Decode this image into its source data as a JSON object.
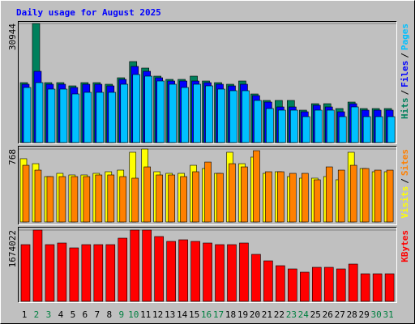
{
  "chart_data": {
    "type": "bar",
    "title": "Daily usage for August 2025",
    "categories": [
      "1",
      "2",
      "3",
      "4",
      "5",
      "6",
      "7",
      "8",
      "9",
      "10",
      "11",
      "12",
      "13",
      "14",
      "15",
      "16",
      "17",
      "18",
      "19",
      "20",
      "21",
      "22",
      "23",
      "24",
      "25",
      "26",
      "27",
      "28",
      "29",
      "30",
      "31"
    ],
    "category_colors": [
      "#000000",
      "#008040",
      "#008040",
      "#000000",
      "#000000",
      "#000000",
      "#000000",
      "#000000",
      "#008040",
      "#008040",
      "#000000",
      "#000000",
      "#000000",
      "#000000",
      "#000000",
      "#008040",
      "#008040",
      "#000000",
      "#000000",
      "#000000",
      "#000000",
      "#000000",
      "#008040",
      "#008040",
      "#000000",
      "#000000",
      "#000000",
      "#000000",
      "#000000",
      "#008040",
      "#008040"
    ],
    "legend_separator": "/",
    "panels": [
      {
        "ylim": [
          0,
          30944
        ],
        "yticks": [
          30944
        ],
        "series": [
          {
            "name": "Hits",
            "color": "#00805c",
            "values": [
              15577,
              30944,
              15577,
              15577,
              14735,
              15577,
              15577,
              15156,
              16840,
              21050,
              19366,
              17261,
              16419,
              16419,
              17261,
              15998,
              15577,
              15156,
              15998,
              12630,
              10946,
              10946,
              10946,
              8420,
              10104,
              10104,
              8841,
              10525,
              8841,
              8841,
              8841
            ]
          },
          {
            "name": "Files",
            "color": "#0000ff",
            "values": [
              15156,
              18524,
              15156,
              15156,
              14314,
              15156,
              15156,
              14735,
              16419,
              19787,
              18524,
              16840,
              15998,
              15998,
              15998,
              15577,
              15156,
              14735,
              15156,
              12209,
              10525,
              9262,
              9262,
              7999,
              9683,
              9262,
              7999,
              10104,
              8420,
              8420,
              8420
            ]
          },
          {
            "name": "Pages",
            "color": "#00c0ff",
            "values": [
              14314,
              15577,
              13893,
              13893,
              12630,
              13051,
              13051,
              13051,
              15156,
              17682,
              17261,
              15998,
              15156,
              14314,
              15156,
              14735,
              13893,
              13472,
              13472,
              10946,
              8841,
              8420,
              8420,
              6736,
              8420,
              8420,
              6736,
              9262,
              6736,
              6736,
              6736
            ]
          }
        ]
      },
      {
        "ylim": [
          0,
          768
        ],
        "yticks": [
          768
        ],
        "series": [
          {
            "name": "Visits",
            "color": "#ffff00",
            "values": [
              666,
              614,
              478,
              512,
              495,
              495,
              512,
              529,
              546,
              734,
              768,
              529,
              512,
              512,
              597,
              563,
              512,
              734,
              614,
              683,
              512,
              529,
              478,
              461,
              461,
              478,
              444,
              734,
              563,
              529,
              529
            ]
          },
          {
            "name": "Sites",
            "color": "#ff8000",
            "values": [
              597,
              546,
              478,
              478,
              478,
              478,
              495,
              495,
              478,
              461,
              580,
              495,
              495,
              478,
              529,
              631,
              512,
              614,
              580,
              751,
              529,
              529,
              512,
              512,
              444,
              580,
              546,
              597,
              563,
              546,
              546
            ]
          }
        ]
      },
      {
        "ylim": [
          0,
          1674022
        ],
        "yticks": [
          1674022
        ],
        "series": [
          {
            "name": "KBytes",
            "color": "#ff0000",
            "values": [
              1331610,
              1674022,
              1331610,
              1369656,
              1255518,
              1331610,
              1331610,
              1331610,
              1483794,
              1674022,
              1674022,
              1521840,
              1407702,
              1445748,
              1407702,
              1369656,
              1331610,
              1331610,
              1369656,
              1103334,
              951150,
              837012,
              760920,
              684828,
              798966,
              798966,
              760920,
              875058,
              646782,
              646782,
              646782
            ]
          }
        ]
      }
    ]
  }
}
